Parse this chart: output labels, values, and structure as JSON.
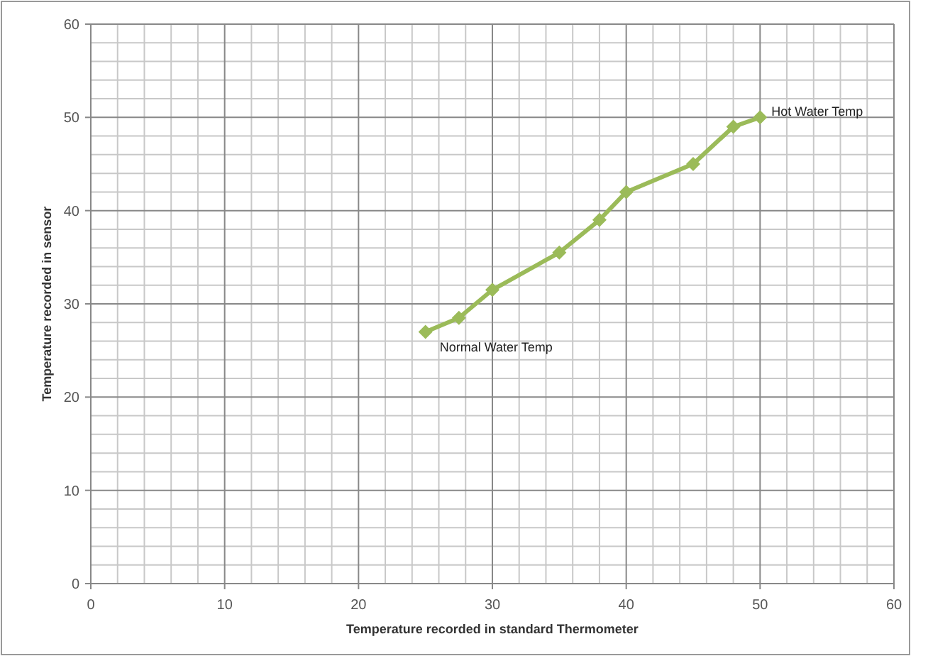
{
  "chart_data": {
    "type": "line",
    "xlabel": "Temperature  recorded in standard  Thermometer",
    "ylabel": "Temperature  recorded in sensor",
    "x": [
      25,
      27.5,
      30,
      35,
      38,
      40,
      45,
      48,
      50
    ],
    "series": [
      {
        "color": "#9bbb59",
        "values": [
          27,
          28.5,
          31.5,
          35.5,
          39,
          42,
          45,
          49,
          50
        ]
      }
    ],
    "xlim": [
      0,
      60
    ],
    "xticks": [
      0,
      10,
      20,
      30,
      40,
      50,
      60
    ],
    "ylim": [
      0,
      60
    ],
    "yticks": [
      0,
      10,
      20,
      30,
      40,
      50,
      60
    ],
    "grid": true,
    "marker": "diamond",
    "line_style": "solid",
    "annotations": [
      {
        "text": "Normal Water Temp",
        "x": 25,
        "y": 27
      },
      {
        "text": "Hot Water Temp",
        "x": 50,
        "y": 50
      }
    ]
  }
}
